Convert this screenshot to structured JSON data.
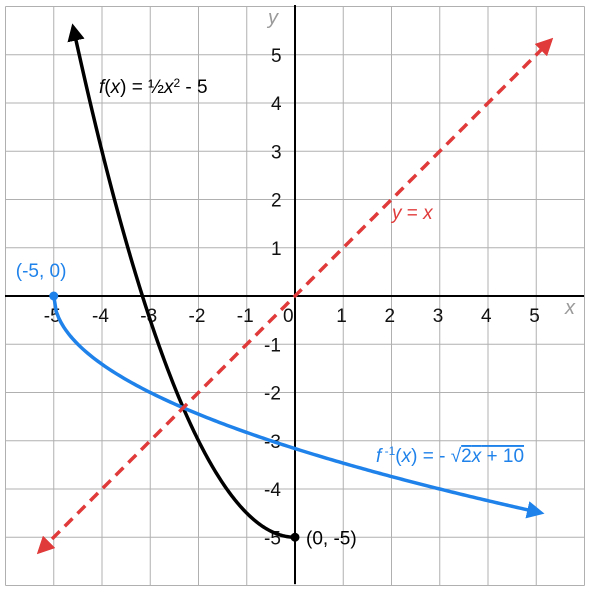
{
  "chart_data": {
    "type": "line",
    "title": "",
    "xlabel": "x",
    "ylabel": "y",
    "xlim": [
      -6,
      6
    ],
    "ylim": [
      -6,
      6
    ],
    "grid": true,
    "x_tick_labels": [
      "-5",
      "-4",
      "-3",
      "-2",
      "-1",
      "0",
      "1",
      "2",
      "3",
      "4",
      "5"
    ],
    "y_tick_labels": [
      "5",
      "4",
      "3",
      "2",
      "1",
      "-1",
      "-2",
      "-3",
      "-4",
      "-5"
    ],
    "colors": {
      "f": "#000000",
      "f_inverse": "#1f82ea",
      "identity": "#e03a3a",
      "grid": "#b0b0b0",
      "axis": "#000000"
    },
    "series": [
      {
        "id": "f",
        "name": "f(x) = ½x² - 5",
        "domain": [
          -4.6,
          0
        ],
        "points": [
          [
            -4.6,
            5.58
          ],
          [
            -4,
            3
          ],
          [
            -3,
            -0.5
          ],
          [
            -2,
            -3
          ],
          [
            -1,
            -4.5
          ],
          [
            0,
            -5
          ]
        ]
      },
      {
        "id": "f_inverse",
        "name": "f ⁻¹(x) = - √2x + 10",
        "domain": [
          -5,
          5.1
        ],
        "points": [
          [
            -5,
            0
          ],
          [
            -4.5,
            -1
          ],
          [
            -3,
            -2
          ],
          [
            -1,
            -2.83
          ],
          [
            0,
            -3.16
          ],
          [
            2,
            -3.74
          ],
          [
            5,
            -4.47
          ]
        ]
      },
      {
        "id": "identity",
        "name": "y = x",
        "domain": [
          -5.3,
          5.3
        ],
        "points": [
          [
            -5.3,
            -5.3
          ],
          [
            0,
            0
          ],
          [
            5.3,
            5.3
          ]
        ]
      }
    ],
    "annotations": [
      {
        "id": "point-f-inverse-start",
        "text": "(-5, 0)",
        "x": -5,
        "y": 0,
        "color": "#1f82ea"
      },
      {
        "id": "point-f-vertex",
        "text": "(0, -5)",
        "x": 0,
        "y": -5,
        "color": "#000000"
      }
    ]
  }
}
